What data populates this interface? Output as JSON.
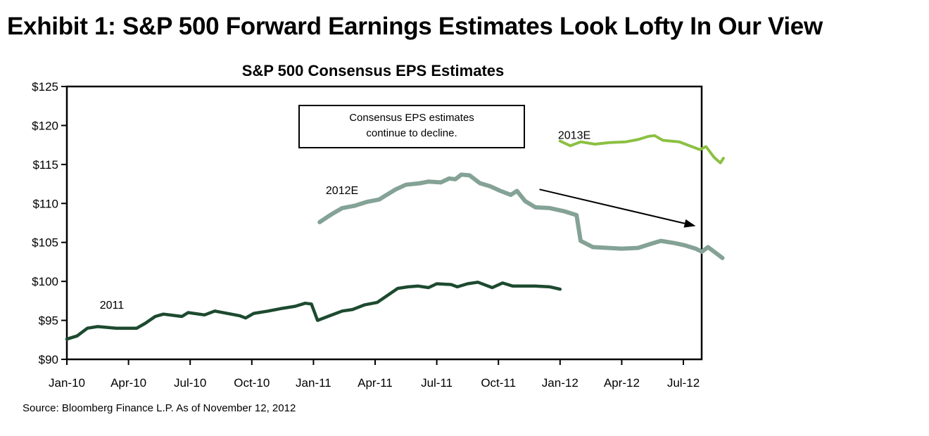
{
  "exhibit_title": "Exhibit 1: S&P 500 Forward Earnings Estimates Look Lofty In Our View",
  "source": "Source: Bloomberg Finance L.P. As of November 12, 2012",
  "chart_data": {
    "type": "line",
    "title": "S&P 500 Consensus EPS Estimates",
    "xlabel": "",
    "ylabel": "",
    "x_unit": "months since Jan-10",
    "xlim": [
      0,
      31
    ],
    "ylim": [
      90,
      125
    ],
    "grid": false,
    "legend": "none (series labeled inline)",
    "y_ticks": [
      90,
      95,
      100,
      105,
      110,
      115,
      120,
      125
    ],
    "y_tick_labels": [
      "$90",
      "$95",
      "$100",
      "$105",
      "$110",
      "$115",
      "$120",
      "$125"
    ],
    "x_ticks": [
      0,
      3,
      6,
      9,
      12,
      15,
      18,
      21,
      24,
      27,
      30
    ],
    "x_tick_labels": [
      "Jan-10",
      "Apr-10",
      "Jul-10",
      "Oct-10",
      "Jan-11",
      "Apr-11",
      "Jul-11",
      "Oct-11",
      "Jan-12",
      "Apr-12",
      "Jul-12"
    ],
    "series": [
      {
        "name": "2011",
        "color": "#1d4a2f",
        "label_at": [
          1.6,
          96.5
        ],
        "points": [
          [
            0,
            92.6
          ],
          [
            0.5,
            93.0
          ],
          [
            1.0,
            94.0
          ],
          [
            1.5,
            94.2
          ],
          [
            2.4,
            94.0
          ],
          [
            3.4,
            94.0
          ],
          [
            3.8,
            94.6
          ],
          [
            4.3,
            95.5
          ],
          [
            4.7,
            95.8
          ],
          [
            5.6,
            95.5
          ],
          [
            5.9,
            96.0
          ],
          [
            6.7,
            95.7
          ],
          [
            7.2,
            96.2
          ],
          [
            8.4,
            95.6
          ],
          [
            8.7,
            95.3
          ],
          [
            9.1,
            95.9
          ],
          [
            9.8,
            96.2
          ],
          [
            10.4,
            96.5
          ],
          [
            11.1,
            96.8
          ],
          [
            11.6,
            97.2
          ],
          [
            11.9,
            97.1
          ],
          [
            12.2,
            95.0
          ],
          [
            12.8,
            95.6
          ],
          [
            13.4,
            96.2
          ],
          [
            13.9,
            96.4
          ],
          [
            14.5,
            97.0
          ],
          [
            15.1,
            97.3
          ],
          [
            15.6,
            98.2
          ],
          [
            16.1,
            99.1
          ],
          [
            16.6,
            99.3
          ],
          [
            17.1,
            99.4
          ],
          [
            17.6,
            99.2
          ],
          [
            18.0,
            99.7
          ],
          [
            18.7,
            99.6
          ],
          [
            19.0,
            99.3
          ],
          [
            19.5,
            99.7
          ],
          [
            20.0,
            99.9
          ],
          [
            20.7,
            99.2
          ],
          [
            21.2,
            99.8
          ],
          [
            21.7,
            99.4
          ],
          [
            22.8,
            99.4
          ],
          [
            23.5,
            99.3
          ],
          [
            24.0,
            99.0
          ]
        ]
      },
      {
        "name": "2012E",
        "color": "#84a296",
        "label_at": [
          12.6,
          111.2
        ],
        "points": [
          [
            12.3,
            107.6
          ],
          [
            12.7,
            108.3
          ],
          [
            13.0,
            108.8
          ],
          [
            13.4,
            109.4
          ],
          [
            14.0,
            109.7
          ],
          [
            14.6,
            110.2
          ],
          [
            15.2,
            110.5
          ],
          [
            15.5,
            111.0
          ],
          [
            16.0,
            111.8
          ],
          [
            16.5,
            112.4
          ],
          [
            17.2,
            112.6
          ],
          [
            17.6,
            112.8
          ],
          [
            18.2,
            112.7
          ],
          [
            18.6,
            113.2
          ],
          [
            18.9,
            113.1
          ],
          [
            19.2,
            113.7
          ],
          [
            19.6,
            113.6
          ],
          [
            20.1,
            112.6
          ],
          [
            20.6,
            112.2
          ],
          [
            21.1,
            111.6
          ],
          [
            21.6,
            111.1
          ],
          [
            21.9,
            111.6
          ],
          [
            22.3,
            110.3
          ],
          [
            22.8,
            109.5
          ],
          [
            23.5,
            109.4
          ],
          [
            24.2,
            109.0
          ],
          [
            24.8,
            108.5
          ],
          [
            25.0,
            105.2
          ],
          [
            25.6,
            104.4
          ],
          [
            26.3,
            104.3
          ],
          [
            27.0,
            104.2
          ],
          [
            27.8,
            104.3
          ],
          [
            28.4,
            104.8
          ],
          [
            28.9,
            105.2
          ],
          [
            29.6,
            104.9
          ],
          [
            30.1,
            104.6
          ],
          [
            30.6,
            104.2
          ],
          [
            30.9,
            103.8
          ],
          [
            31.2,
            104.4
          ],
          [
            31.6,
            103.6
          ],
          [
            31.9,
            103.0
          ]
        ]
      },
      {
        "name": "2013E",
        "color": "#8cc043",
        "label_at": [
          23.9,
          118.3
        ],
        "points": [
          [
            24.0,
            118.0
          ],
          [
            24.5,
            117.4
          ],
          [
            25.0,
            117.9
          ],
          [
            25.7,
            117.6
          ],
          [
            26.4,
            117.8
          ],
          [
            27.2,
            117.9
          ],
          [
            27.8,
            118.2
          ],
          [
            28.3,
            118.6
          ],
          [
            28.6,
            118.7
          ],
          [
            29.0,
            118.1
          ],
          [
            29.8,
            117.9
          ],
          [
            30.4,
            117.3
          ],
          [
            30.8,
            116.9
          ],
          [
            31.1,
            117.3
          ],
          [
            31.5,
            115.9
          ],
          [
            31.8,
            115.2
          ],
          [
            32.0,
            115.8
          ]
        ]
      }
    ],
    "annotations": [
      {
        "type": "text-box",
        "lines": [
          "Consensus EPS estimates",
          "continue to decline."
        ]
      },
      {
        "type": "arrow",
        "from": [
          23.0,
          111.8
        ],
        "to": [
          30.6,
          107.1
        ],
        "direction": "down-right"
      }
    ]
  }
}
